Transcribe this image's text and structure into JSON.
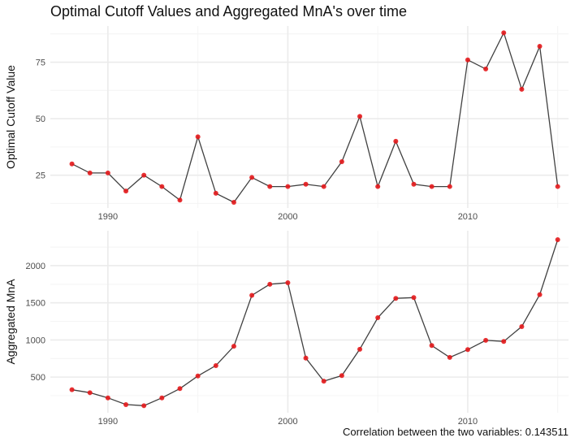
{
  "title": "Optimal Cutoff Values and Aggregated MnA's over time",
  "caption": "Correlation between the two variables: 0.143511",
  "colors": {
    "line": "#404040",
    "point": "#e41a1c",
    "grid_major": "#ebebeb",
    "grid_minor": "#f4f4f4"
  },
  "chart_data": [
    {
      "type": "line",
      "ylabel": "Optimal Cutoff Value",
      "xlabel": "",
      "x_ticks": [
        1990,
        2000,
        2010
      ],
      "y_ticks": [
        25,
        50,
        75
      ],
      "xlim": [
        1986.8,
        2015.6
      ],
      "ylim": [
        10.5,
        91
      ],
      "grid": true,
      "points_marked": true,
      "x": [
        1988,
        1989,
        1990,
        1991,
        1992,
        1993,
        1994,
        1995,
        1996,
        1997,
        1998,
        1999,
        2000,
        2001,
        2002,
        2003,
        2004,
        2005,
        2006,
        2007,
        2008,
        2009,
        2010,
        2011,
        2012,
        2013,
        2014,
        2015
      ],
      "y": [
        30,
        26,
        26,
        18,
        25,
        20,
        14,
        42,
        17,
        13,
        24,
        20,
        20,
        21,
        20,
        31,
        51,
        20,
        40,
        21,
        20,
        20,
        76,
        72,
        88,
        63,
        82,
        20
      ]
    },
    {
      "type": "line",
      "ylabel": "Aggregated MnA",
      "xlabel": "",
      "x_ticks": [
        1990,
        2000,
        2010
      ],
      "y_ticks": [
        500,
        1000,
        1500,
        2000
      ],
      "xlim": [
        1986.8,
        2015.6
      ],
      "ylim": [
        20,
        2470
      ],
      "grid": true,
      "points_marked": true,
      "x": [
        1988,
        1989,
        1990,
        1991,
        1992,
        1993,
        1994,
        1995,
        1996,
        1997,
        1998,
        1999,
        2000,
        2001,
        2002,
        2003,
        2004,
        2005,
        2006,
        2007,
        2008,
        2009,
        2010,
        2011,
        2012,
        2013,
        2014,
        2015
      ],
      "y": [
        330,
        290,
        220,
        130,
        115,
        220,
        345,
        515,
        655,
        915,
        1600,
        1750,
        1770,
        755,
        445,
        520,
        875,
        1300,
        1560,
        1570,
        925,
        765,
        870,
        995,
        980,
        1180,
        1610,
        2350
      ]
    }
  ]
}
